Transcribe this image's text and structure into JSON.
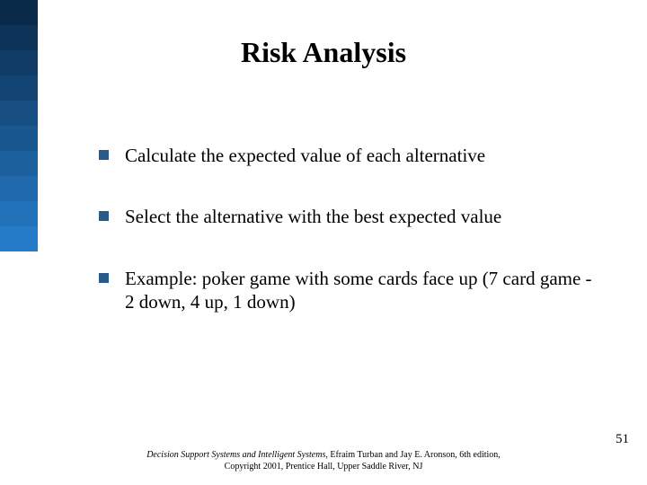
{
  "slide": {
    "title": "Risk Analysis",
    "bullets": [
      {
        "text": "Calculate the expected value of each alternative"
      },
      {
        "text": "Select the alternative with the best expected value"
      },
      {
        "text": "Example: poker game with some cards face up (7 card game - 2 down, 4 up, 1 down)"
      }
    ],
    "bullet_color": "#2a5a8a",
    "sidebar_colors": [
      "#0a2a4a",
      "#0d3358",
      "#103c66",
      "#134574",
      "#164e82",
      "#195790",
      "#1c609e",
      "#1f69ac",
      "#2272ba",
      "#257bc8"
    ],
    "footer_italic": "Decision Support Systems and Intelligent Systems",
    "footer_rest1": ", Efraim Turban and Jay E. Aronson, 6th edition,",
    "footer_line2": "Copyright 2001, Prentice Hall, Upper Saddle River, NJ",
    "page_number": "51"
  }
}
